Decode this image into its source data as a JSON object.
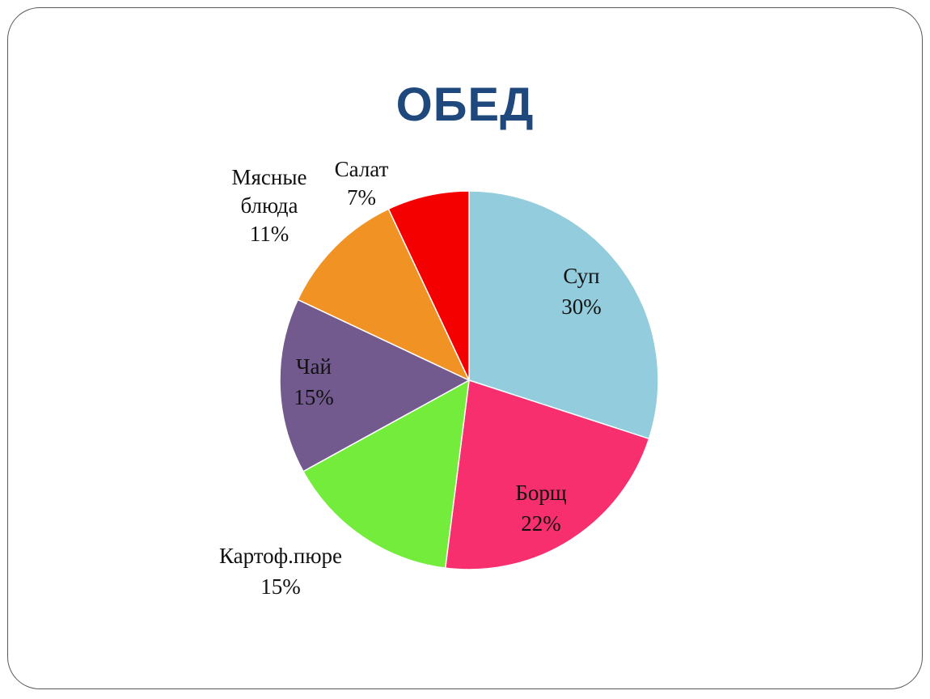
{
  "slide": {
    "title": "ОБЕД"
  },
  "chart_data": {
    "type": "pie",
    "title": "ОБЕД",
    "start": "top, clockwise",
    "slices": [
      {
        "label_lines": [
          "Суп",
          "30%"
        ],
        "value": 30,
        "color": "#93cddd"
      },
      {
        "label_lines": [
          "Борщ",
          "22%"
        ],
        "value": 22,
        "color": "#f72f6f"
      },
      {
        "label_lines": [
          "Картоф.пюре",
          "15%"
        ],
        "value": 15,
        "color": "#74ec3c"
      },
      {
        "label_lines": [
          "Чай",
          "15%"
        ],
        "value": 15,
        "color": "#725a8f"
      },
      {
        "label_lines": [
          "Мясные",
          "блюда",
          "11%"
        ],
        "value": 11,
        "color": "#f09224"
      },
      {
        "label_lines": [
          "Салат",
          "7%"
        ],
        "value": 7,
        "color": "#f50000"
      }
    ]
  }
}
